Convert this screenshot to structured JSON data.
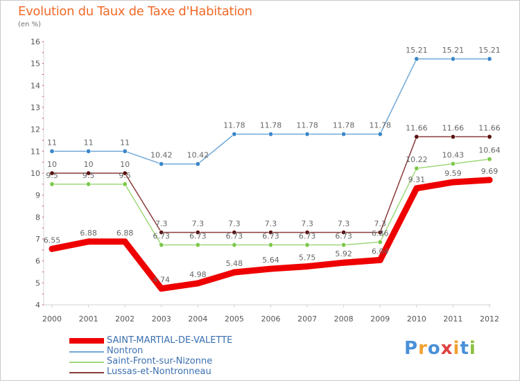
{
  "header": {
    "title": "Evolution du Taux de Taxe d'Habitation",
    "subtitle": "(en %)"
  },
  "brand": {
    "text": "Proxiti",
    "letters": [
      {
        "ch": "P",
        "color": "#4a90d9"
      },
      {
        "ch": "r",
        "color": "#f0a030"
      },
      {
        "ch": "o",
        "color": "#4a90d9"
      },
      {
        "ch": "x",
        "color": "#e04040"
      },
      {
        "ch": "i",
        "color": "#f0a030"
      },
      {
        "ch": "t",
        "color": "#4a90d9"
      },
      {
        "ch": "i",
        "color": "#8cc040"
      }
    ]
  },
  "chart_data": {
    "type": "line",
    "title": "Evolution du Taux de Taxe d'Habitation",
    "ylabel": "(en %)",
    "xlabel": "",
    "categories": [
      "2000",
      "2001",
      "2002",
      "2003",
      "2004",
      "2005",
      "2006",
      "2007",
      "2008",
      "2009",
      "2010",
      "2011",
      "2012"
    ],
    "ylim": [
      4,
      16
    ],
    "yticks": [
      "4",
      "5",
      "6",
      "7",
      "8",
      "9",
      "10",
      "11",
      "12",
      "13",
      "14",
      "15",
      "16"
    ],
    "grid": false,
    "legend_position": "bottom-left",
    "series": [
      {
        "name": "SAINT-MARTIAL-DE-VALETTE",
        "color": "#ee0000",
        "marker_color": "#ee0000",
        "bold": true,
        "values": [
          6.55,
          6.88,
          6.88,
          4.74,
          4.98,
          5.48,
          5.64,
          5.75,
          5.92,
          6.04,
          9.31,
          9.59,
          9.69
        ],
        "labels": [
          "6.55",
          "6.88",
          "6.88",
          "4.74",
          "4.98",
          "5.48",
          "5.64",
          "5.75",
          "5.92",
          "6.04",
          "9.31",
          "9.59",
          "9.69"
        ]
      },
      {
        "name": "Nontron",
        "color": "#6fa8d8",
        "marker_color": "#3a86c8",
        "bold": false,
        "values": [
          11,
          11,
          11,
          10.42,
          10.42,
          11.78,
          11.78,
          11.78,
          11.78,
          11.78,
          15.21,
          15.21,
          15.21
        ],
        "labels": [
          "11",
          "11",
          "11",
          "10.42",
          "10.42",
          "11.78",
          "11.78",
          "11.78",
          "11.78",
          "11.78",
          "15.21",
          "15.21",
          "15.21"
        ]
      },
      {
        "name": "Saint-Front-sur-Nizonne",
        "color": "#9ed87a",
        "marker_color": "#7cc84a",
        "bold": false,
        "values": [
          9.5,
          9.5,
          9.5,
          6.73,
          6.73,
          6.73,
          6.73,
          6.73,
          6.73,
          6.86,
          10.22,
          10.43,
          10.64
        ],
        "labels": [
          "9.5",
          "9.5",
          "9.5",
          "6.73",
          "6.73",
          "6.73",
          "6.73",
          "6.73",
          "6.73",
          "6.86",
          "10.22",
          "10.43",
          "10.64"
        ]
      },
      {
        "name": "Lussas-et-Nontronneau",
        "color": "#8a3a3a",
        "marker_color": "#5a1010",
        "bold": false,
        "values": [
          10,
          10,
          10,
          7.3,
          7.3,
          7.3,
          7.3,
          7.3,
          7.3,
          7.3,
          11.66,
          11.66,
          11.66
        ],
        "labels": [
          "10",
          "10",
          "10",
          "7.3",
          "7.3",
          "7.3",
          "7.3",
          "7.3",
          "7.3",
          "7.3",
          "11.66",
          "11.66",
          "11.66"
        ]
      }
    ]
  }
}
